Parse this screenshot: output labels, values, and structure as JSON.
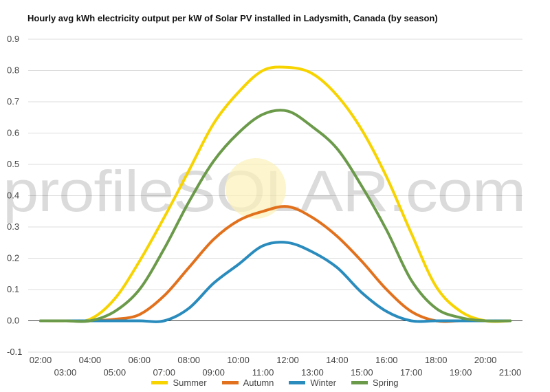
{
  "chart_data": {
    "type": "line",
    "title": "Hourly avg kWh electricity output per kW of Solar PV installed in Ladysmith, Canada (by season)",
    "watermark": "profileSOLAR.com",
    "xlabel": "",
    "ylabel": "",
    "x_ticks_row1": [
      "02:00",
      "04:00",
      "06:00",
      "08:00",
      "10:00",
      "12:00",
      "14:00",
      "16:00",
      "18:00",
      "20:00"
    ],
    "x_ticks_row2": [
      "03:00",
      "05:00",
      "07:00",
      "09:00",
      "11:00",
      "13:00",
      "15:00",
      "17:00",
      "19:00",
      "21:00"
    ],
    "y_ticks": [
      "0.9",
      "0.8",
      "0.7",
      "0.6",
      "0.5",
      "0.4",
      "0.3",
      "0.2",
      "0.1",
      "0.0",
      "-0.1"
    ],
    "ylim": [
      -0.1,
      0.9
    ],
    "grid": true,
    "legend_position": "bottom",
    "x": [
      2,
      3,
      4,
      5,
      6,
      7,
      8,
      9,
      10,
      11,
      12,
      13,
      14,
      15,
      16,
      17,
      18,
      19,
      20,
      21
    ],
    "series": [
      {
        "name": "Summer",
        "color": "#f7d300",
        "values": [
          0.0,
          0.0,
          0.005,
          0.07,
          0.19,
          0.33,
          0.48,
          0.63,
          0.73,
          0.8,
          0.81,
          0.79,
          0.72,
          0.61,
          0.46,
          0.28,
          0.11,
          0.03,
          0.0,
          0.0
        ]
      },
      {
        "name": "Autumn",
        "color": "#e2711d",
        "values": [
          0.0,
          0.0,
          0.0,
          0.005,
          0.02,
          0.08,
          0.17,
          0.26,
          0.32,
          0.35,
          0.365,
          0.33,
          0.27,
          0.19,
          0.1,
          0.03,
          0.0,
          0.0,
          0.0,
          0.0
        ]
      },
      {
        "name": "Winter",
        "color": "#2a8bbd",
        "values": [
          0.0,
          0.0,
          0.0,
          0.0,
          0.0,
          0.0,
          0.04,
          0.12,
          0.18,
          0.24,
          0.25,
          0.22,
          0.17,
          0.09,
          0.03,
          0.0,
          0.0,
          0.0,
          0.0,
          0.0
        ]
      },
      {
        "name": "Spring",
        "color": "#6b9a4a",
        "values": [
          0.0,
          0.0,
          0.0,
          0.03,
          0.1,
          0.23,
          0.38,
          0.51,
          0.6,
          0.66,
          0.67,
          0.62,
          0.55,
          0.43,
          0.29,
          0.13,
          0.04,
          0.01,
          0.0,
          0.0
        ]
      }
    ]
  }
}
